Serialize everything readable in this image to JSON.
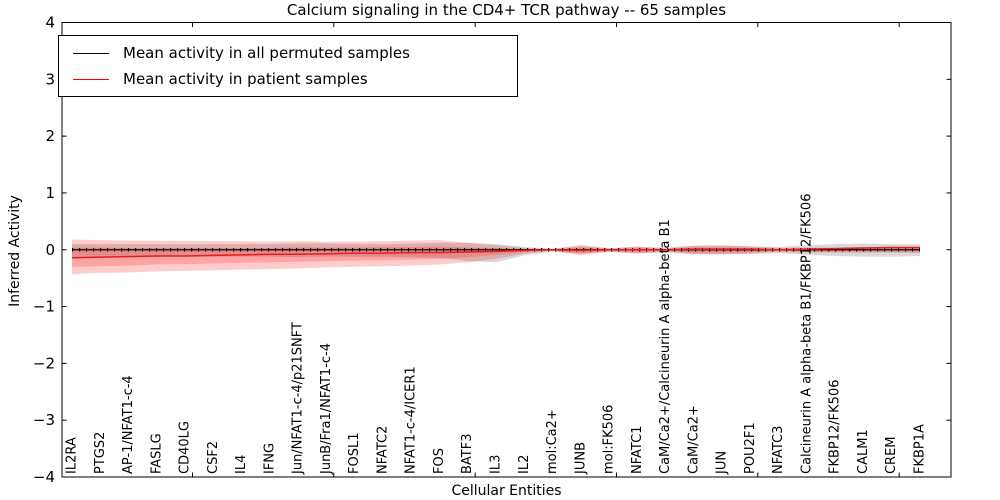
{
  "title": "Calcium signaling in the CD4+ TCR pathway -- 65 samples",
  "axes": {
    "ylabel": "Inferred Activity",
    "xlabel": "Cellular Entities",
    "yticks": [
      4,
      3,
      2,
      1,
      0,
      -1,
      -2,
      -3,
      -4
    ],
    "ylim": [
      -4,
      4
    ]
  },
  "legend": {
    "items": [
      {
        "label": "Mean activity in all permuted samples",
        "color": "#000000"
      },
      {
        "label": "Mean activity in patient samples",
        "color": "#ff0000"
      }
    ],
    "position": "upper left"
  },
  "chart_data": {
    "type": "line",
    "title": "Calcium signaling in the CD4+ TCR pathway -- 65 samples",
    "xlabel": "Cellular Entities",
    "ylabel": "Inferred Activity",
    "ylim": [
      -4,
      4
    ],
    "grid": false,
    "zero_line_style": "dotted",
    "legend_position": "upper left",
    "categories": [
      "IL2RA",
      "PTGS2",
      "AP-1/NFAT1-c-4",
      "FASLG",
      "CD40LG",
      "CSF2",
      "IL4",
      "IFNG",
      "Jun/NFAT1-c-4/p21SNFT",
      "JunB/Fra1/NFAT1-c-4",
      "FOSL1",
      "NFATC2",
      "NFAT1-c-4/ICER1",
      "FOS",
      "BATF3",
      "IL3",
      "IL2",
      "mol:Ca2+",
      "JUNB",
      "mol:FK506",
      "NFATC1",
      "CaM/Ca2+/Calcineurin A alpha-beta B1",
      "CaM/Ca2+",
      "JUN",
      "POU2F1",
      "NFATC3",
      "Calcineurin A alpha-beta B1/FKBP12/FK506",
      "FKBP12/FK506",
      "CALM1",
      "CREM",
      "FKBP1A"
    ],
    "series": [
      {
        "name": "Mean activity in all permuted samples",
        "color": "#000000",
        "values": [
          0.0,
          0.0,
          0.0,
          0.0,
          0.0,
          0.0,
          0.0,
          0.0,
          0.0,
          0.0,
          0.0,
          0.0,
          0.0,
          0.0,
          0.0,
          0.0,
          0.0,
          0.0,
          0.0,
          0.0,
          0.0,
          0.0,
          0.0,
          0.0,
          0.0,
          0.0,
          0.0,
          0.0,
          0.0,
          0.0,
          0.0
        ]
      },
      {
        "name": "Mean activity in patient samples",
        "color": "#e32020",
        "values": [
          -0.14,
          -0.13,
          -0.12,
          -0.11,
          -0.11,
          -0.1,
          -0.09,
          -0.08,
          -0.08,
          -0.07,
          -0.06,
          -0.06,
          -0.05,
          -0.05,
          -0.04,
          -0.03,
          -0.01,
          0.0,
          -0.01,
          0.0,
          0.0,
          0.0,
          0.01,
          0.01,
          0.01,
          0.0,
          0.01,
          0.02,
          0.03,
          0.04,
          0.04
        ]
      }
    ],
    "bands": [
      {
        "name": "permuted-samples-range",
        "color": "rgba(0,0,0,0.15)",
        "upper": [
          0.1,
          0.1,
          0.1,
          0.1,
          0.1,
          0.1,
          0.1,
          0.1,
          0.11,
          0.11,
          0.1,
          0.1,
          0.11,
          0.12,
          0.12,
          0.1,
          0.05,
          0.02,
          0.06,
          0.03,
          0.05,
          0.04,
          0.07,
          0.07,
          0.06,
          0.05,
          0.08,
          0.1,
          0.11,
          0.1,
          0.1
        ],
        "lower": [
          -0.12,
          -0.12,
          -0.12,
          -0.12,
          -0.12,
          -0.12,
          -0.12,
          -0.12,
          -0.13,
          -0.12,
          -0.12,
          -0.12,
          -0.13,
          -0.14,
          -0.2,
          -0.22,
          -0.1,
          -0.03,
          -0.07,
          -0.04,
          -0.06,
          -0.05,
          -0.08,
          -0.08,
          -0.07,
          -0.06,
          -0.09,
          -0.11,
          -0.12,
          -0.12,
          -0.11
        ]
      },
      {
        "name": "patient-samples-range-outer",
        "color": "rgba(255,0,0,0.20)",
        "upper": [
          0.18,
          0.17,
          0.16,
          0.16,
          0.15,
          0.15,
          0.15,
          0.14,
          0.15,
          0.14,
          0.14,
          0.15,
          0.16,
          0.17,
          0.12,
          0.08,
          0.03,
          0.01,
          0.09,
          0.02,
          0.06,
          0.02,
          0.07,
          0.08,
          0.06,
          0.03,
          0.04,
          0.04,
          0.05,
          0.05,
          0.05
        ],
        "lower": [
          -0.43,
          -0.41,
          -0.4,
          -0.38,
          -0.37,
          -0.36,
          -0.35,
          -0.34,
          -0.33,
          -0.31,
          -0.3,
          -0.29,
          -0.28,
          -0.26,
          -0.22,
          -0.16,
          -0.07,
          -0.02,
          -0.1,
          -0.03,
          -0.07,
          -0.03,
          -0.08,
          -0.08,
          -0.07,
          -0.04,
          -0.05,
          -0.05,
          -0.05,
          -0.05,
          -0.06
        ]
      },
      {
        "name": "patient-samples-range-inner",
        "color": "rgba(255,0,0,0.20)",
        "upper": [
          0.04,
          0.04,
          0.03,
          0.03,
          0.03,
          0.03,
          0.03,
          0.03,
          0.04,
          0.04,
          0.04,
          0.05,
          0.05,
          0.06,
          0.04,
          0.03,
          0.01,
          0.0,
          0.04,
          0.01,
          0.03,
          0.01,
          0.04,
          0.04,
          0.03,
          0.01,
          0.02,
          0.03,
          0.04,
          0.04,
          0.05
        ],
        "lower": [
          -0.3,
          -0.29,
          -0.28,
          -0.26,
          -0.25,
          -0.24,
          -0.23,
          -0.22,
          -0.21,
          -0.2,
          -0.19,
          -0.18,
          -0.17,
          -0.16,
          -0.13,
          -0.09,
          -0.04,
          -0.01,
          -0.06,
          -0.02,
          -0.04,
          -0.02,
          -0.05,
          -0.05,
          -0.04,
          -0.02,
          -0.03,
          -0.03,
          -0.03,
          -0.03,
          -0.03
        ]
      }
    ]
  }
}
